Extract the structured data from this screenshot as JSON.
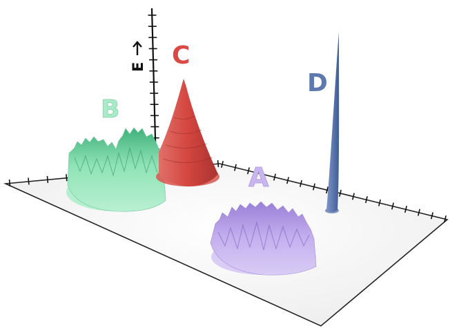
{
  "labels": {
    "a": "A",
    "b": "B",
    "c": "C",
    "d": "D",
    "axis": "E"
  },
  "colors": {
    "a": "#b7a0e4",
    "b": "#8fe3b6",
    "c": "#d9514b",
    "d": "#5b77ad",
    "axis": "#111111",
    "plane": "#f4f4f4"
  }
}
